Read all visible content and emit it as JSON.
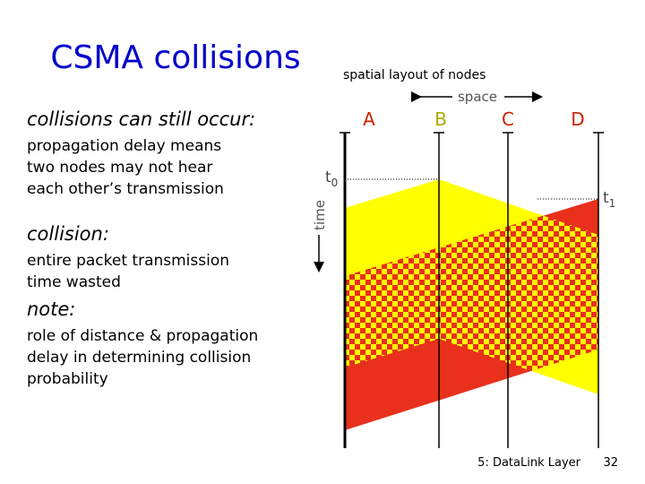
{
  "title": "CSMA collisions",
  "sections": [
    {
      "heading": "collisions can still occur:",
      "lines": [
        "propagation delay means",
        "two nodes may not hear",
        "each other’s transmission"
      ]
    },
    {
      "heading": "collision:",
      "lines": [
        "entire packet transmission",
        "time wasted"
      ]
    },
    {
      "heading": "note:",
      "lines": [
        "role of distance & propagation",
        "delay in determining collision",
        "probability"
      ]
    }
  ],
  "diagram": {
    "caption": "spatial layout of nodes",
    "space": "space",
    "time": "time",
    "nodes": [
      "A",
      "B",
      "C",
      "D"
    ],
    "t0": {
      "base": "t",
      "sub": "0"
    },
    "t1": {
      "base": "t",
      "sub": "1"
    }
  },
  "footer": {
    "chapter": "5: DataLink Layer",
    "page": "32"
  }
}
